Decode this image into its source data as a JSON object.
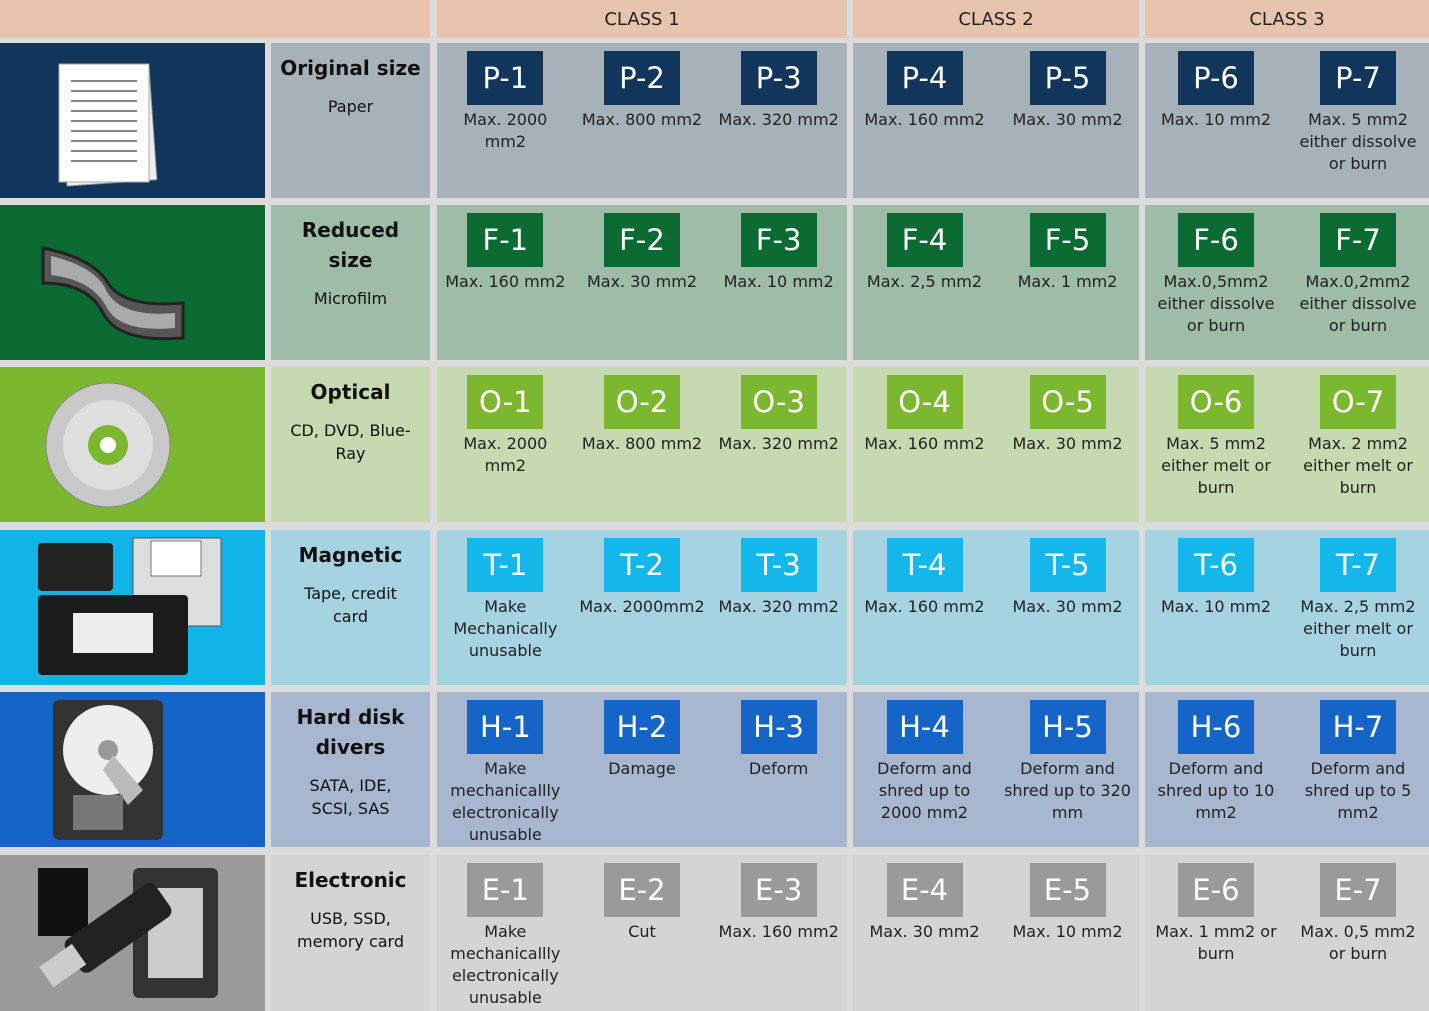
{
  "header": {
    "classes": [
      "CLASS 1",
      "CLASS 2",
      "CLASS 3"
    ]
  },
  "rows": [
    {
      "title": "Original size",
      "subtitle": "Paper",
      "cells": [
        {
          "code": "P-1",
          "text": "Max. 2000 mm2"
        },
        {
          "code": "P-2",
          "text": "Max. 800 mm2"
        },
        {
          "code": "P-3",
          "text": "Max. 320 mm2"
        },
        {
          "code": "P-4",
          "text": "Max. 160 mm2"
        },
        {
          "code": "P-5",
          "text": "Max. 30 mm2"
        },
        {
          "code": "P-6",
          "text": "Max. 10 mm2"
        },
        {
          "code": "P-7",
          "text": "Max. 5 mm2 either dissolve or burn"
        }
      ]
    },
    {
      "title": "Reduced size",
      "subtitle": "Microfilm",
      "cells": [
        {
          "code": "F-1",
          "text": "Max.  160 mm2"
        },
        {
          "code": "F-2",
          "text": "Max. 30 mm2"
        },
        {
          "code": "F-3",
          "text": "Max. 10 mm2"
        },
        {
          "code": "F-4",
          "text": "Max. 2,5 mm2"
        },
        {
          "code": "F-5",
          "text": "Max. 1 mm2"
        },
        {
          "code": "F-6",
          "text": "Max.0,5mm2 either dissolve or burn"
        },
        {
          "code": "F-7",
          "text": "Max.0,2mm2 either dissolve or burn"
        }
      ]
    },
    {
      "title": "Optical",
      "subtitle": "CD, DVD, Blue-Ray",
      "cells": [
        {
          "code": "O-1",
          "text": "Max. 2000 mm2"
        },
        {
          "code": "O-2",
          "text": "Max. 800 mm2"
        },
        {
          "code": "O-3",
          "text": "Max. 320 mm2"
        },
        {
          "code": "O-4",
          "text": "Max. 160 mm2"
        },
        {
          "code": "O-5",
          "text": "Max. 30 mm2"
        },
        {
          "code": "O-6",
          "text": "Max. 5 mm2 either melt or burn"
        },
        {
          "code": "O-7",
          "text": "Max. 2 mm2 either melt or burn"
        }
      ]
    },
    {
      "title": "Magnetic",
      "subtitle": "Tape, credit card",
      "cells": [
        {
          "code": "T-1",
          "text": "Make Mechanically unusable"
        },
        {
          "code": "T-2",
          "text": "Max. 2000mm2"
        },
        {
          "code": "T-3",
          "text": "Max. 320 mm2"
        },
        {
          "code": "T-4",
          "text": "Max. 160 mm2"
        },
        {
          "code": "T-5",
          "text": "Max. 30 mm2"
        },
        {
          "code": "T-6",
          "text": "Max. 10 mm2"
        },
        {
          "code": "T-7",
          "text": "Max. 2,5 mm2 either melt or burn"
        }
      ]
    },
    {
      "title": "Hard disk divers",
      "subtitle": "SATA, IDE, SCSI, SAS",
      "cells": [
        {
          "code": "H-1",
          "text": "Make mechanicallly electronically unusable"
        },
        {
          "code": "H-2",
          "text": "Damage"
        },
        {
          "code": "H-3",
          "text": "Deform"
        },
        {
          "code": "H-4",
          "text": "Deform and shred up to 2000 mm2"
        },
        {
          "code": "H-5",
          "text": "Deform and shred up to 320 mm"
        },
        {
          "code": "H-6",
          "text": "Deform and shred up to 10 mm2"
        },
        {
          "code": "H-7",
          "text": "Deform and shred up to 5 mm2"
        }
      ]
    },
    {
      "title": "Electronic",
      "subtitle": "USB, SSD, memory card",
      "cells": [
        {
          "code": "E-1",
          "text": "Make mechanicallly electronically unusable"
        },
        {
          "code": "E-2",
          "text": "Cut"
        },
        {
          "code": "E-3",
          "text": "Max. 160 mm2"
        },
        {
          "code": "E-4",
          "text": "Max. 30 mm2"
        },
        {
          "code": "E-5",
          "text": "Max. 10 mm2"
        },
        {
          "code": "E-6",
          "text": "Max. 1 mm2 or burn"
        },
        {
          "code": "E-7",
          "text": "Max. 0,5 mm2 or burn"
        }
      ]
    }
  ]
}
